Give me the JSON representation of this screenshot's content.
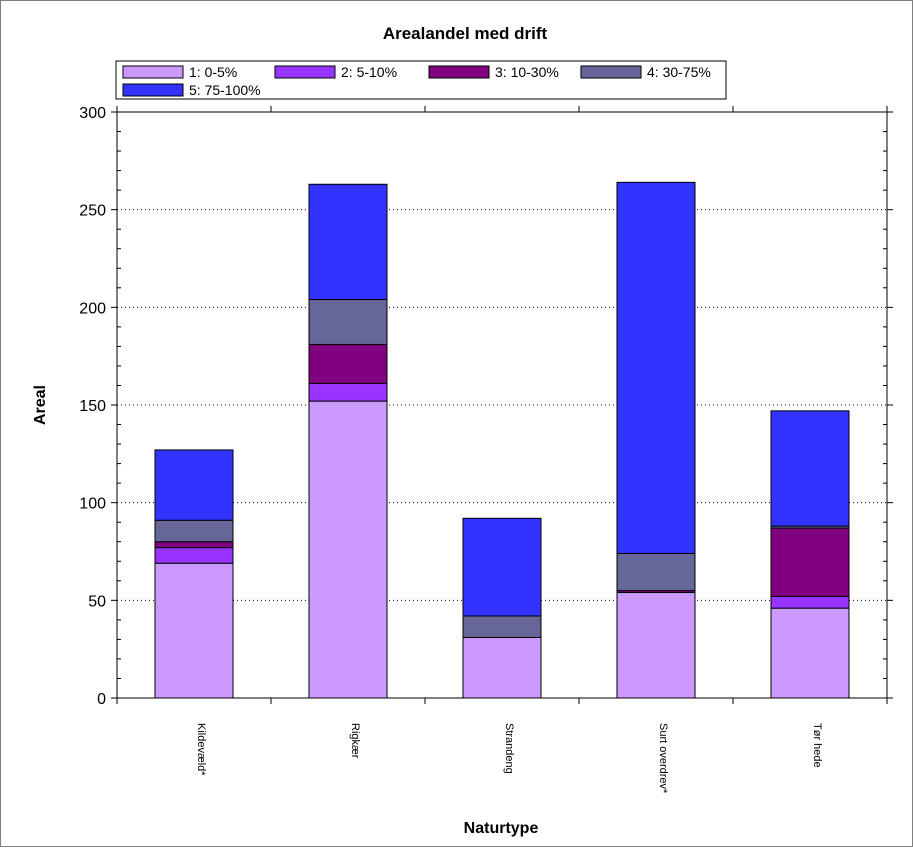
{
  "chart_data": {
    "type": "bar",
    "stacked": true,
    "title": "Arealandel med drift",
    "xlabel": "Naturtype",
    "ylabel": "Areal",
    "ylim": [
      0,
      300
    ],
    "yticks": [
      0,
      50,
      100,
      150,
      200,
      250,
      300
    ],
    "grid": "horizontal dotted",
    "legend_position": "top",
    "categories": [
      "Kildevæld*",
      "Rigkær",
      "Strandeng",
      "Surt overdrev*",
      "Tør hede"
    ],
    "series": [
      {
        "name": "1: 0-5%",
        "color": "#cc99ff",
        "values": [
          69,
          152,
          31,
          54,
          46
        ]
      },
      {
        "name": "2: 5-10%",
        "color": "#9933ff",
        "values": [
          8,
          9,
          0,
          0,
          6
        ]
      },
      {
        "name": "3: 10-30%",
        "color": "#800080",
        "values": [
          3,
          20,
          0,
          1,
          35
        ]
      },
      {
        "name": "4: 30-75%",
        "color": "#666699",
        "values": [
          11,
          23,
          11,
          19,
          1
        ]
      },
      {
        "name": "5: 75-100%",
        "color": "#3333ff",
        "values": [
          36,
          59,
          50,
          190,
          59
        ]
      }
    ]
  }
}
